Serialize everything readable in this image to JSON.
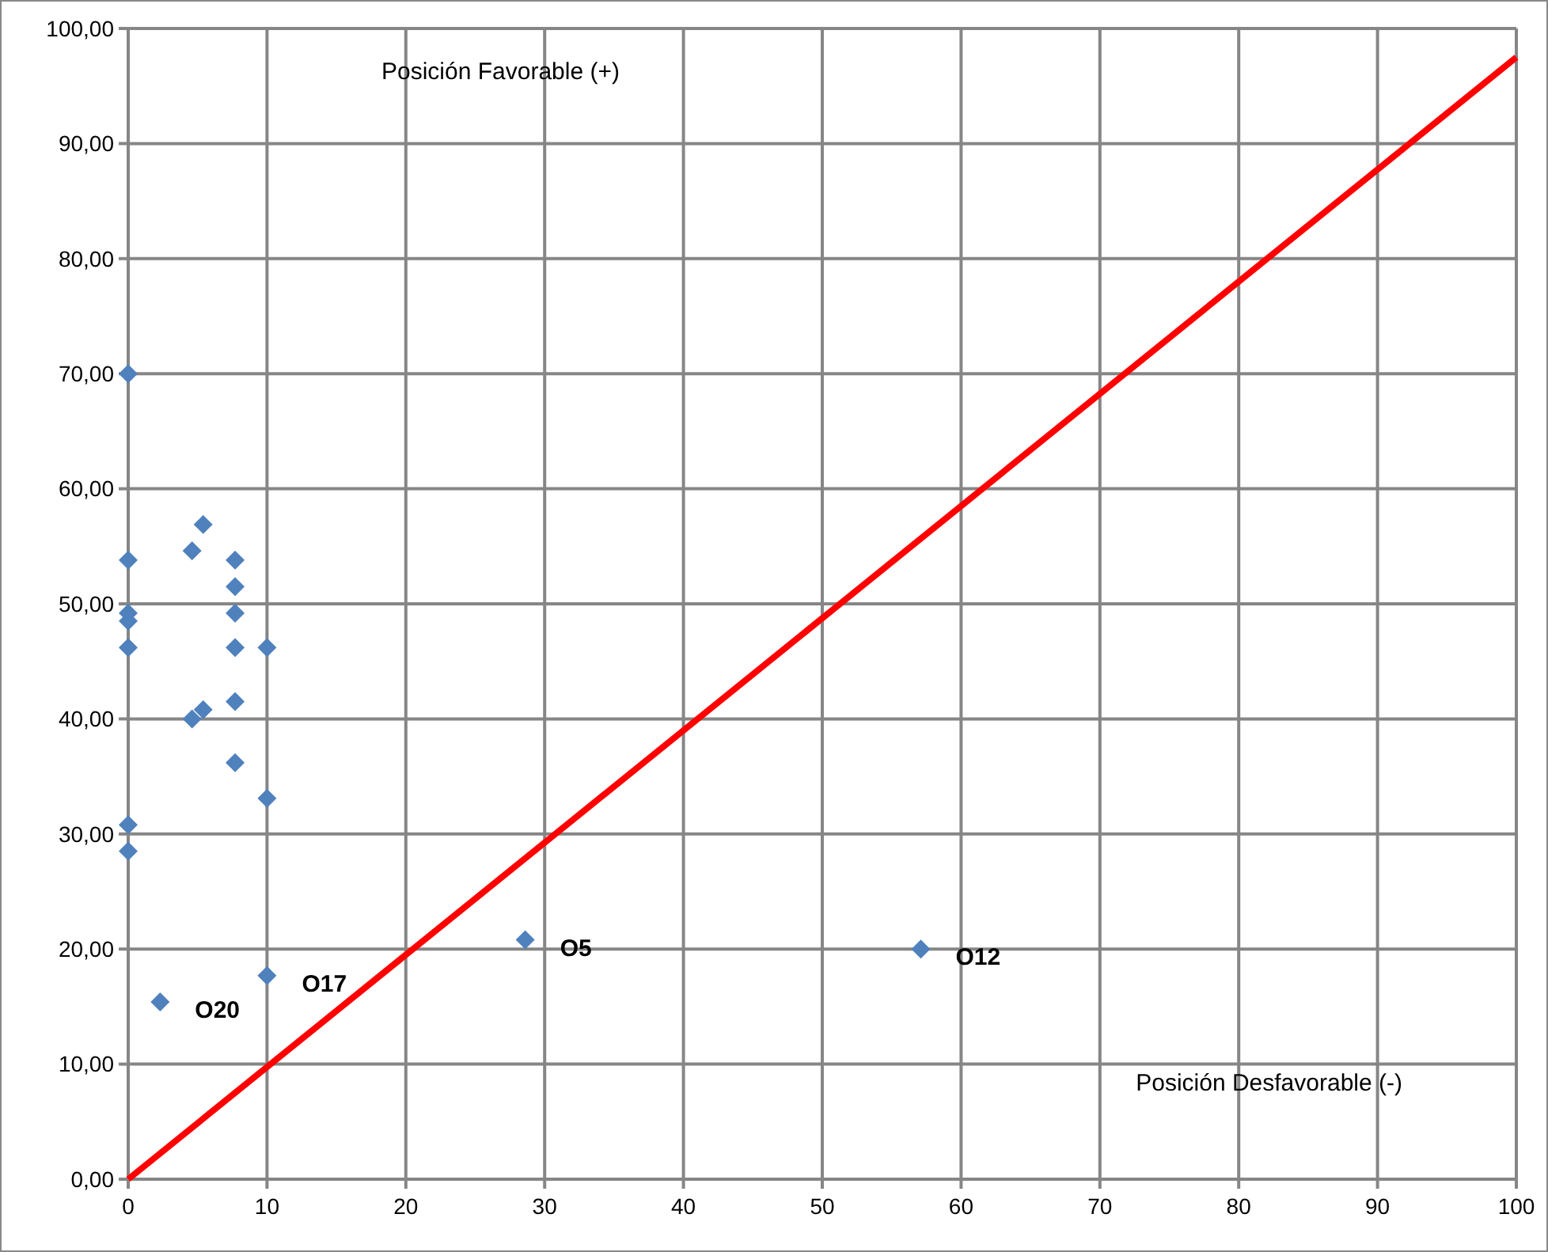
{
  "chart_data": {
    "type": "scatter",
    "xlim": [
      0,
      100
    ],
    "ylim": [
      0,
      100
    ],
    "xticks": [
      0,
      10,
      20,
      30,
      40,
      50,
      60,
      70,
      80,
      90,
      100
    ],
    "yticks": [
      {
        "value": 0,
        "label": "0,00"
      },
      {
        "value": 10,
        "label": "10,00"
      },
      {
        "value": 20,
        "label": "20,00"
      },
      {
        "value": 30,
        "label": "30,00"
      },
      {
        "value": 40,
        "label": "40,00"
      },
      {
        "value": 50,
        "label": "50,00"
      },
      {
        "value": 60,
        "label": "60,00"
      },
      {
        "value": 70,
        "label": "70,00"
      },
      {
        "value": 80,
        "label": "80,00"
      },
      {
        "value": 90,
        "label": "90,00"
      },
      {
        "value": 100,
        "label": "100,00"
      }
    ],
    "grid": true,
    "marker": "diamond",
    "series": [
      {
        "color": "#4f81bd",
        "x": [
          0,
          0,
          0,
          0,
          0,
          0,
          0,
          4.6,
          5.4,
          4.6,
          5.4,
          7.7,
          7.7,
          7.7,
          7.7,
          7.7,
          7.7,
          10,
          10,
          2.3,
          10,
          28.6,
          57.1
        ],
        "values": [
          70,
          53.8,
          49.2,
          48.5,
          46.2,
          30.8,
          28.5,
          54.6,
          56.9,
          40,
          40.8,
          53.8,
          51.5,
          49.2,
          46.2,
          41.5,
          36.2,
          46.2,
          33.1,
          15.4,
          17.7,
          20.8,
          20
        ]
      },
      {
        "type": "line",
        "color": "#ff0000",
        "x": [
          0,
          100
        ],
        "values": [
          0,
          97.5
        ],
        "marker": "none"
      }
    ],
    "annotations": [
      {
        "text": "O20",
        "x": 2.3,
        "y": 15.4
      },
      {
        "text": "O17",
        "x": 10,
        "y": 17.7
      },
      {
        "text": "O5",
        "x": 28.6,
        "y": 20.8
      },
      {
        "text": "O12",
        "x": 57.1,
        "y": 20
      },
      "Posición Favorable (+)",
      "Posición Desfavorable (-)"
    ]
  }
}
